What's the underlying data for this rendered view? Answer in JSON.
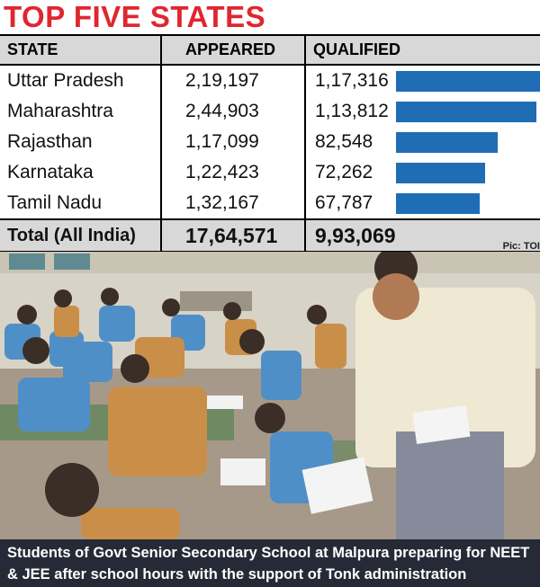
{
  "title": "TOP FIVE STATES",
  "columns": [
    "STATE",
    "APPEARED",
    "QUALIFIED"
  ],
  "rows": [
    {
      "state": "Uttar Pradesh",
      "appeared": "2,19,197",
      "qualified": "1,17,316"
    },
    {
      "state": "Maharashtra",
      "appeared": "2,44,903",
      "qualified": "1,13,812"
    },
    {
      "state": "Rajasthan",
      "appeared": "1,17,099",
      "qualified": "82,548"
    },
    {
      "state": "Karnataka",
      "appeared": "1,22,423",
      "qualified": "72,262"
    },
    {
      "state": "Tamil Nadu",
      "appeared": "1,32,167",
      "qualified": "67,787"
    }
  ],
  "total": {
    "label": "Total (All India)",
    "appeared": "17,64,571",
    "qualified": "9,93,069"
  },
  "credit": "Pic: TOI",
  "caption": "Students of Govt Senior Secondary School at Malpura preparing for NEET & JEE after school hours with the support of Tonk administration",
  "colors": {
    "title": "#e0262f",
    "bar": "#1f6db5",
    "caption_bg": "#262a36",
    "header_bg": "#d8d8d8"
  },
  "chart_data": {
    "type": "bar",
    "title": "TOP FIVE STATES",
    "categories": [
      "Uttar Pradesh",
      "Maharashtra",
      "Rajasthan",
      "Karnataka",
      "Tamil Nadu"
    ],
    "series": [
      {
        "name": "QUALIFIED",
        "values": [
          117316,
          113812,
          82548,
          72262,
          67787
        ]
      }
    ],
    "xlabel": "",
    "ylabel": "Qualified",
    "ylim": [
      0,
      117316
    ]
  }
}
